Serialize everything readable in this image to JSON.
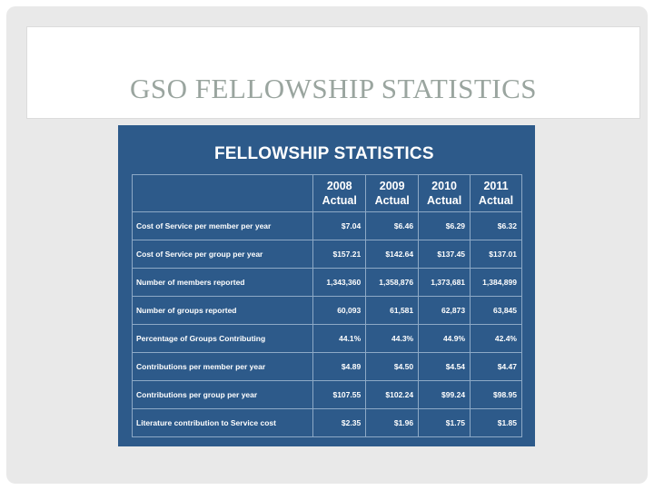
{
  "slide": {
    "title": "GSO FELLOWSHIP STATISTICS"
  },
  "panel": {
    "heading": "FELLOWSHIP STATISTICS",
    "columns": [
      {
        "year": "2008",
        "label": "Actual"
      },
      {
        "year": "2009",
        "label": "Actual"
      },
      {
        "year": "2010",
        "label": "Actual"
      },
      {
        "year": "2011",
        "label": "Actual"
      }
    ],
    "rows": [
      {
        "label": "Cost of Service per member per year",
        "values": [
          "$7.04",
          "$6.46",
          "$6.29",
          "$6.32"
        ]
      },
      {
        "label": "Cost of Service per group per year",
        "values": [
          "$157.21",
          "$142.64",
          "$137.45",
          "$137.01"
        ]
      },
      {
        "label": "Number of members reported",
        "values": [
          "1,343,360",
          "1,358,876",
          "1,373,681",
          "1,384,899"
        ]
      },
      {
        "label": "Number of groups reported",
        "values": [
          "60,093",
          "61,581",
          "62,873",
          "63,845"
        ]
      },
      {
        "label": "Percentage of Groups Contributing",
        "values": [
          "44.1%",
          "44.3%",
          "44.9%",
          "42.4%"
        ]
      },
      {
        "label": "Contributions per member per year",
        "values": [
          "$4.89",
          "$4.50",
          "$4.54",
          "$4.47"
        ]
      },
      {
        "label": "Contributions per group per year",
        "values": [
          "$107.55",
          "$102.24",
          "$99.24",
          "$98.95"
        ]
      },
      {
        "label": "Literature contribution to Service cost",
        "values": [
          "$2.35",
          "$1.96",
          "$1.75",
          "$1.85"
        ]
      }
    ]
  }
}
